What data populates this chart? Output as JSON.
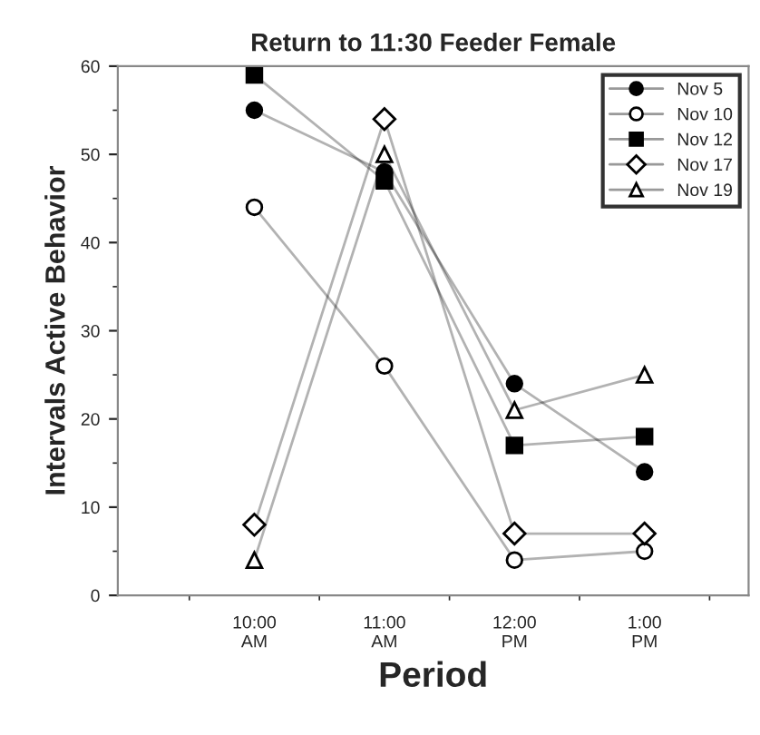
{
  "chart_data": {
    "type": "line",
    "title": "Return to 11:30 Feeder Female",
    "xlabel": "Period",
    "ylabel": "Intervals Active Behavior",
    "categories": [
      "10:00\nAM",
      "11:00\nAM",
      "12:00\nPM",
      "1:00\nPM"
    ],
    "series": [
      {
        "name": "Nov 5",
        "color": "#000000",
        "marker": "circle",
        "values": [
          55,
          48,
          24,
          14
        ]
      },
      {
        "name": "Nov 10",
        "color": "#000000",
        "marker": "circle",
        "values": [
          44,
          26,
          4,
          5
        ]
      },
      {
        "name": "Nov 12",
        "color": "#000000",
        "marker": "square",
        "values": [
          59,
          47,
          17,
          18
        ]
      },
      {
        "name": "Nov 17",
        "color": "#000000",
        "marker": "diamond",
        "values": [
          8,
          54,
          7,
          7
        ]
      },
      {
        "name": "Nov 19",
        "color": "#000000",
        "marker": "triangle",
        "values": [
          4,
          50,
          21,
          25
        ]
      }
    ],
    "ylim": [
      0,
      60
    ],
    "yticks": [
      0,
      10,
      20,
      30,
      40,
      50,
      60
    ],
    "grid": false,
    "legend": "top right",
    "line_style": "solid"
  }
}
